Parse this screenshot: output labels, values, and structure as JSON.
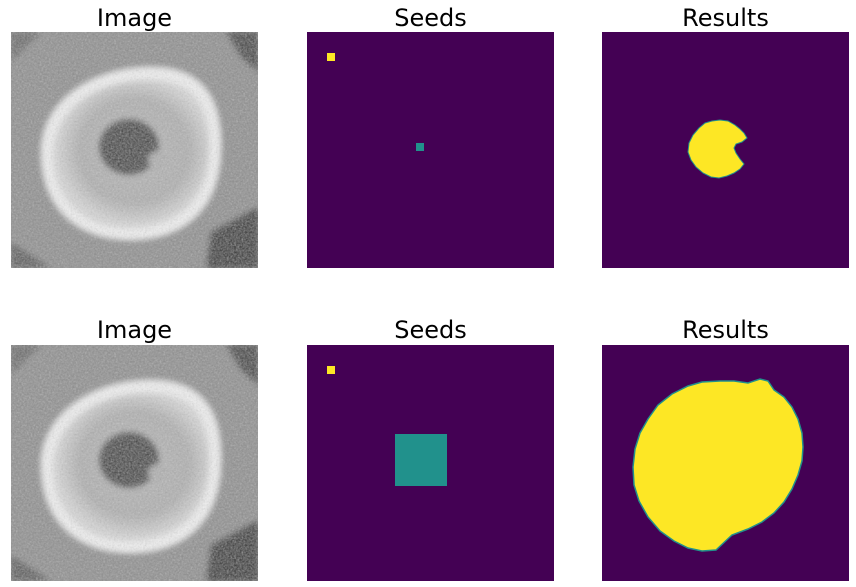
{
  "rows": [
    {
      "image_title": "Image",
      "seeds_title": "Seeds",
      "results_title": "Results"
    },
    {
      "image_title": "Image",
      "seeds_title": "Seeds",
      "results_title": "Results"
    }
  ],
  "colors": {
    "background_label": "#440154",
    "seed_a": "#fde725",
    "seed_b": "#21918c",
    "result_fill": "#fde725",
    "result_edge": "#21918c"
  }
}
